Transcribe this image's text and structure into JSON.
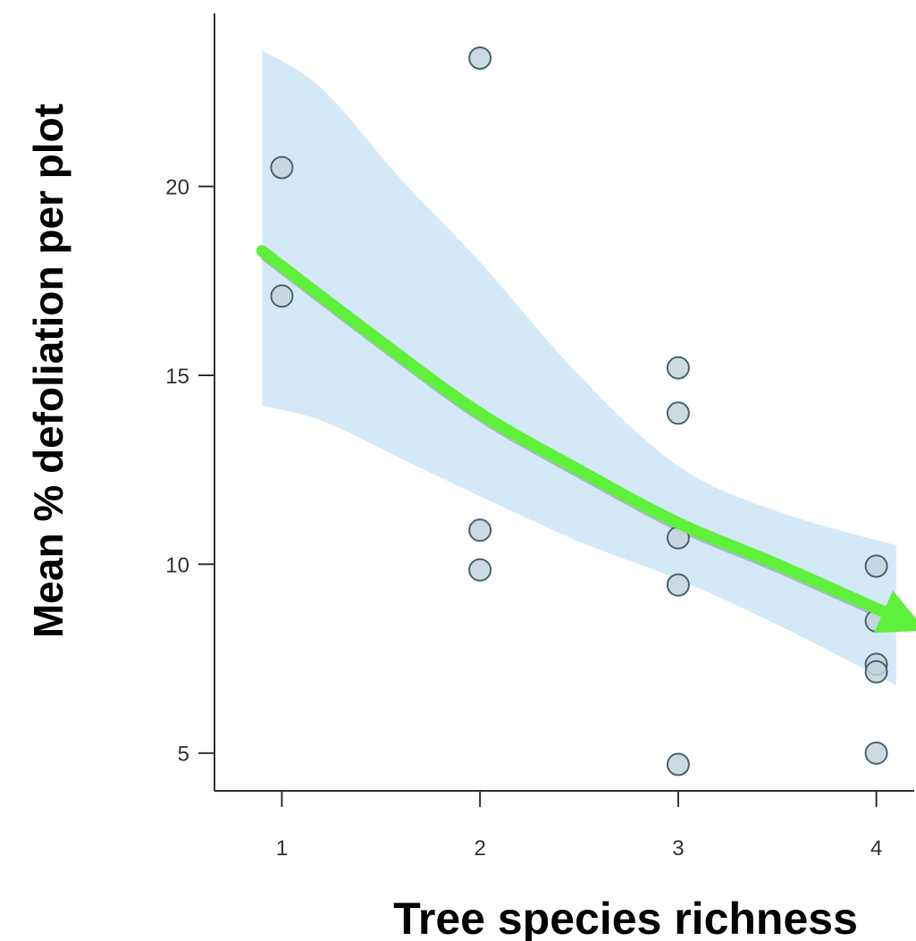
{
  "chart_data": {
    "type": "scatter",
    "title": "",
    "xlabel": "Tree species richness",
    "ylabel": "Mean % defoliation per plot",
    "x_ticks": [
      "1",
      "2",
      "3",
      "4"
    ],
    "y_ticks": [
      "5",
      "10",
      "15",
      "20"
    ],
    "xlim": [
      0.66,
      4.2
    ],
    "ylim": [
      4.0,
      24.7
    ],
    "grid": false,
    "points": [
      {
        "x": 1,
        "y": 20.5
      },
      {
        "x": 1,
        "y": 17.1
      },
      {
        "x": 2,
        "y": 23.4
      },
      {
        "x": 2,
        "y": 10.9
      },
      {
        "x": 2,
        "y": 9.85
      },
      {
        "x": 3,
        "y": 15.2
      },
      {
        "x": 3,
        "y": 14.0
      },
      {
        "x": 3,
        "y": 10.7
      },
      {
        "x": 3,
        "y": 9.45
      },
      {
        "x": 3,
        "y": 4.7
      },
      {
        "x": 4,
        "y": 9.95
      },
      {
        "x": 4,
        "y": 8.5
      },
      {
        "x": 4,
        "y": 7.35
      },
      {
        "x": 4,
        "y": 7.15
      },
      {
        "x": 4,
        "y": 5.0
      }
    ],
    "fit": {
      "x": [
        0.9,
        1.5,
        2.0,
        2.5,
        3.0,
        3.5,
        4.1
      ],
      "y": [
        18.2,
        15.8,
        13.9,
        12.4,
        11.0,
        9.9,
        8.5
      ]
    },
    "confidence_band": {
      "x": [
        0.9,
        1.2,
        1.6,
        2.0,
        2.5,
        3.0,
        3.5,
        4.1
      ],
      "upper": [
        23.6,
        22.6,
        20.2,
        18.0,
        15.0,
        12.6,
        11.4,
        10.5
      ],
      "lower": [
        14.2,
        13.8,
        12.8,
        11.8,
        10.6,
        9.6,
        8.4,
        6.8
      ]
    },
    "colors": {
      "band": "#d4e9f7",
      "fit_line": "#2e7fbf",
      "arrow": "#5ef03a",
      "point_fill": "#c3d3dc",
      "point_stroke": "#4a6570",
      "axis": "#333333"
    }
  }
}
